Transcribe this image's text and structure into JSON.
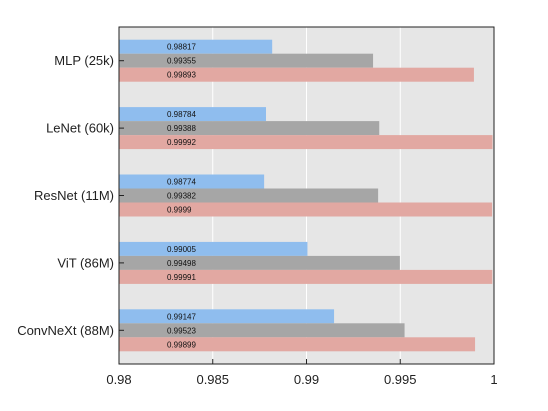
{
  "chart_data": {
    "type": "bar",
    "orientation": "horizontal",
    "title": "",
    "xlabel": "",
    "ylabel": "",
    "xlim": [
      0.98,
      1.0
    ],
    "x_ticks": [
      0.98,
      0.985,
      0.99,
      0.995,
      1.0
    ],
    "x_tick_labels": [
      "0.98",
      "0.985",
      "0.99",
      "0.995",
      "1"
    ],
    "grid": true,
    "legend": "none",
    "categories": [
      "MLP (25k)",
      "LeNet (60k)",
      "ResNet (11M)",
      "ViT (86M)",
      "ConvNeXt (88M)"
    ],
    "series": [
      {
        "color": "#8fbdee",
        "values": [
          0.98817,
          0.98784,
          0.98774,
          0.99005,
          0.99147
        ],
        "labels": [
          "0.98817",
          "0.98784",
          "0.98774",
          "0.99005",
          "0.99147"
        ]
      },
      {
        "color": "#a6a6a6",
        "values": [
          0.99355,
          0.99388,
          0.99382,
          0.99498,
          0.99523
        ],
        "labels": [
          "0.99355",
          "0.99388",
          "0.99382",
          "0.99498",
          "0.99523"
        ]
      },
      {
        "color": "#e2a8a2",
        "values": [
          0.99893,
          0.99992,
          0.9999,
          0.99991,
          0.99899
        ],
        "labels": [
          "0.99893",
          "0.99992",
          "0.9999",
          "0.99991",
          "0.99899"
        ]
      }
    ],
    "colors": {
      "plot_background": "#e6e6e6",
      "grid": "#ffffff",
      "axis": "#222222"
    }
  }
}
